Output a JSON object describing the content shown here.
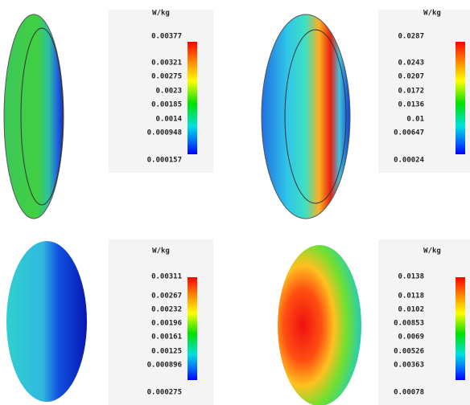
{
  "panels": [
    {
      "unit": "W/kg",
      "labels": [
        "0.00377",
        "0.00321",
        "0.00275",
        "0.0023",
        "0.00185",
        "0.0014",
        "0.000948",
        "0.000157"
      ]
    },
    {
      "unit": "W/kg",
      "labels": [
        "0.0287",
        "0.0243",
        "0.0207",
        "0.0172",
        "0.0136",
        "0.01",
        "0.00647",
        "0.00024"
      ]
    },
    {
      "unit": "W/kg",
      "labels": [
        "0.00311",
        "0.00267",
        "0.00232",
        "0.00196",
        "0.00161",
        "0.00125",
        "0.000896",
        "0.000275"
      ]
    },
    {
      "unit": "W/kg",
      "labels": [
        "0.0138",
        "0.0118",
        "0.0102",
        "0.00853",
        "0.0069",
        "0.00526",
        "0.00363",
        "0.00078"
      ]
    }
  ]
}
